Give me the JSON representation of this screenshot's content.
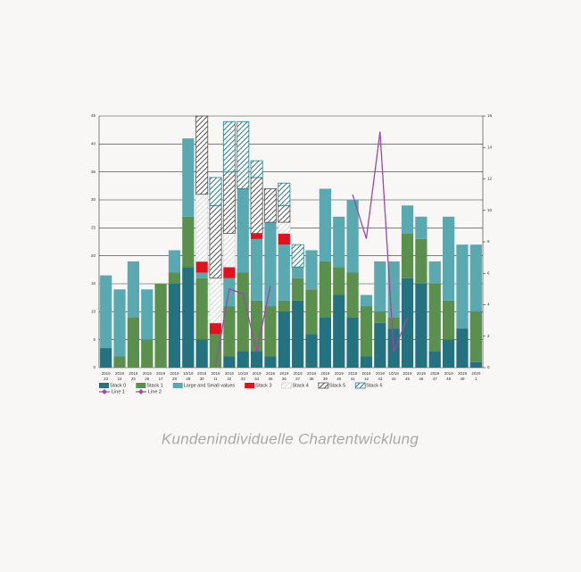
{
  "chart_data": {
    "type": "bar",
    "caption": "Kundenindividuelle Chartentwicklung",
    "categories": [
      "23",
      "24",
      "25",
      "26",
      "17",
      "28",
      "29",
      "30",
      "t1",
      "32",
      "33",
      "34",
      "35",
      "36",
      "37",
      "38",
      "39",
      "40",
      "41",
      "12",
      "43",
      "44",
      "45",
      "46",
      "47",
      "48",
      "49",
      "1"
    ],
    "category_years": [
      "2019",
      "2019",
      "2019",
      "2019",
      "2019",
      "2019",
      "10/19",
      "2019",
      "2019",
      "2019",
      "10/19",
      "2019",
      "2019",
      "2019",
      "2019",
      "2019",
      "2019",
      "2019",
      "2019",
      "2019",
      "2019",
      "10/19",
      "2019",
      "2019",
      "2019",
      "2019",
      "2019",
      "2020"
    ],
    "series": [
      {
        "name": "Stack 0",
        "color": "#24717f",
        "values": [
          3.5,
          0,
          0,
          0,
          0,
          15,
          18,
          5,
          0,
          2,
          3,
          3,
          2,
          10,
          12,
          6,
          9,
          13,
          9,
          2,
          8,
          7,
          16,
          15,
          3,
          5,
          7,
          1
        ]
      },
      {
        "name": "Stack 1",
        "color": "#5a8f4e",
        "values": [
          0,
          2,
          9,
          5,
          15,
          2,
          9,
          11,
          6,
          9,
          14,
          9,
          9,
          2,
          4,
          8,
          10,
          5,
          8,
          9,
          2,
          2,
          8,
          8,
          12,
          7,
          0,
          9
        ]
      },
      {
        "name": "Large and Small values",
        "color": "#5aa8b0",
        "values": [
          13,
          12,
          10,
          9,
          0,
          4,
          14,
          1,
          0,
          5,
          15,
          11,
          15,
          10,
          2,
          7,
          13,
          9,
          13,
          2,
          9,
          10,
          5,
          4,
          4,
          15,
          15,
          12
        ]
      },
      {
        "name": "Stack 3",
        "color": "#e0121e",
        "values": [
          0,
          0,
          0,
          0,
          0,
          0,
          0,
          2,
          2,
          2,
          0,
          1,
          0,
          2,
          0,
          0,
          0,
          0,
          0,
          0,
          0,
          0,
          0,
          0,
          0,
          0,
          0,
          0
        ]
      },
      {
        "name": "Stack 4",
        "color": "#d6d6d6",
        "hatch": true,
        "values": [
          0,
          0,
          0,
          0,
          0,
          0,
          0,
          12,
          8,
          6,
          0,
          0,
          0,
          2,
          0,
          0,
          0,
          0,
          0,
          0,
          0,
          0,
          0,
          0,
          0,
          0,
          0,
          0
        ]
      },
      {
        "name": "Stack 5",
        "color": "#555555",
        "hatch": true,
        "values": [
          0,
          0,
          0,
          0,
          0,
          0,
          0,
          14,
          13,
          11,
          0,
          10,
          6,
          3,
          0,
          0,
          0,
          0,
          0,
          0,
          0,
          0,
          0,
          0,
          0,
          0,
          0,
          0
        ]
      },
      {
        "name": "Stack 6",
        "color": "#2a7d8c",
        "hatch": true,
        "values": [
          0,
          0,
          0,
          0,
          0,
          0,
          0,
          0,
          5,
          9,
          12,
          3,
          0,
          4,
          4,
          0,
          0,
          0,
          0,
          0,
          0,
          0,
          0,
          0,
          0,
          0,
          0,
          0
        ]
      },
      {
        "name": "Line 1",
        "type": "line",
        "axis": "y2",
        "color": "#9b4aa0",
        "values": [
          null,
          null,
          null,
          null,
          null,
          null,
          null,
          null,
          0.1,
          5,
          4.7,
          1,
          5.2,
          null,
          null,
          null,
          null,
          null,
          null,
          null,
          null,
          null,
          null,
          null,
          null,
          null,
          null,
          null
        ]
      },
      {
        "name": "Line 2",
        "type": "line",
        "axis": "y2",
        "color": "#9b4aa0",
        "values": [
          null,
          null,
          null,
          null,
          null,
          null,
          null,
          null,
          null,
          null,
          null,
          null,
          null,
          null,
          null,
          null,
          null,
          null,
          11,
          8.2,
          15,
          1,
          3.2,
          null,
          null,
          null,
          null,
          null
        ]
      }
    ],
    "ylim": [
      0,
      45
    ],
    "yticks": [
      0,
      5,
      10,
      15,
      20,
      25,
      30,
      35,
      40,
      45
    ],
    "y2lim": [
      0,
      16
    ],
    "y2ticks": [
      0,
      2,
      4,
      6,
      8,
      10,
      12,
      14,
      16
    ],
    "grid": true
  }
}
